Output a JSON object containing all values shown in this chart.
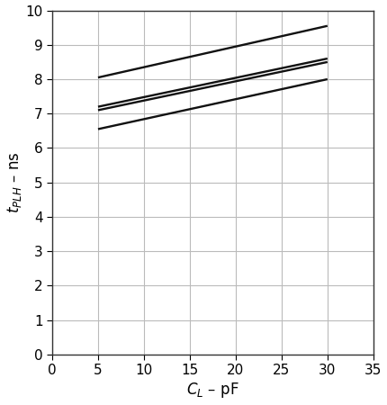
{
  "title": "",
  "xlabel": "$C_L$ – pF",
  "ylabel": "$t_{PLH}$ – ns",
  "xlim": [
    0,
    35
  ],
  "ylim": [
    0,
    10
  ],
  "xticks": [
    0,
    5,
    10,
    15,
    20,
    25,
    30,
    35
  ],
  "yticks": [
    0,
    1,
    2,
    3,
    4,
    5,
    6,
    7,
    8,
    9,
    10
  ],
  "lines": [
    {
      "x": [
        5,
        30
      ],
      "y": [
        8.05,
        9.55
      ],
      "color": "#111111",
      "lw": 1.7
    },
    {
      "x": [
        5,
        30
      ],
      "y": [
        7.2,
        8.6
      ],
      "color": "#111111",
      "lw": 1.7
    },
    {
      "x": [
        5,
        30
      ],
      "y": [
        7.1,
        8.5
      ],
      "color": "#111111",
      "lw": 1.7
    },
    {
      "x": [
        5,
        30
      ],
      "y": [
        6.55,
        8.0
      ],
      "color": "#111111",
      "lw": 1.7
    }
  ],
  "grid_color": "#bbbbbb",
  "bg_color": "#ffffff",
  "ylabel_fontsize": 12,
  "xlabel_fontsize": 12,
  "tick_fontsize": 11,
  "spine_color": "#333333",
  "spine_lw": 1.0
}
